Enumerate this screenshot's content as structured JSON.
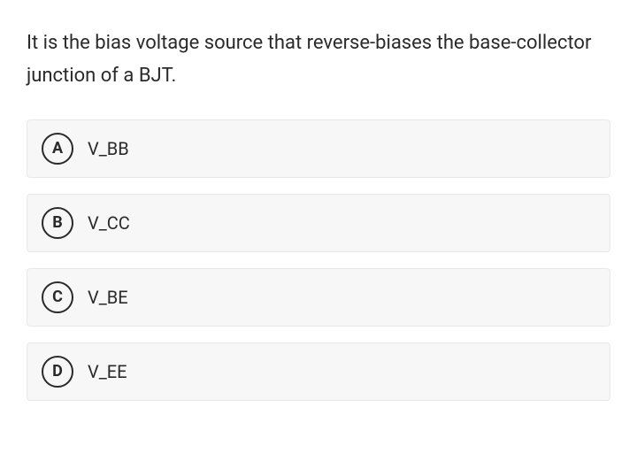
{
  "question": {
    "text": "It is the bias voltage source that reverse-biases the base-collector junction of a BJT.",
    "text_color": "#2a2a2a",
    "fontsize": 22
  },
  "options": [
    {
      "letter": "A",
      "label": "V_BB"
    },
    {
      "letter": "B",
      "label": "V_CC"
    },
    {
      "letter": "C",
      "label": "V_BE"
    },
    {
      "letter": "D",
      "label": "V_EE"
    }
  ],
  "styling": {
    "option_bg": "#f7f7f7",
    "option_border": "#e8e8e8",
    "letter_border_color": "#2a2a2a",
    "letter_fontsize": 18,
    "option_fontsize": 20,
    "background_color": "#ffffff"
  }
}
